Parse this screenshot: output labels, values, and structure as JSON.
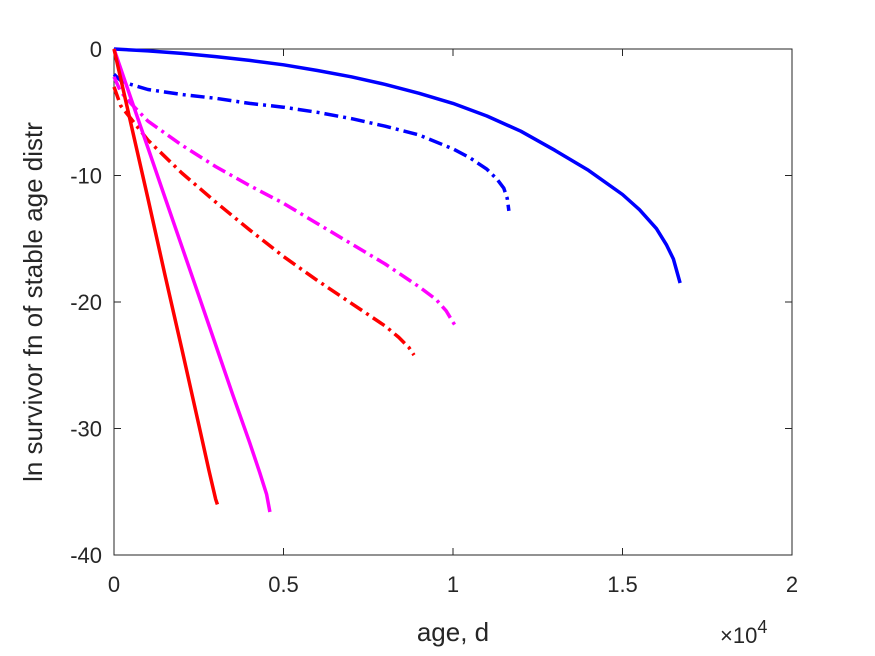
{
  "chart_data": {
    "type": "line",
    "xlabel": "age, d",
    "ylabel": "ln survivor fn of stable age distr",
    "x_exponent_label": "×10",
    "x_exponent_power": "4",
    "xlim": [
      0,
      20000
    ],
    "ylim": [
      -40,
      0
    ],
    "x_ticks": [
      0,
      5000,
      10000,
      15000,
      20000
    ],
    "x_tick_labels": [
      "0",
      "0.5",
      "1",
      "1.5",
      "2"
    ],
    "y_ticks": [
      0,
      -10,
      -20,
      -30,
      -40
    ],
    "y_tick_labels": [
      "0",
      "-10",
      "-20",
      "-30",
      "-40"
    ],
    "grid": false,
    "series": [
      {
        "color": "#0000ff",
        "dash": "solid",
        "x": [
          0,
          1000,
          2000,
          3000,
          4000,
          5000,
          6000,
          7000,
          8000,
          9000,
          10000,
          11000,
          12000,
          13000,
          14000,
          15000,
          15500,
          16000,
          16300,
          16500,
          16700
        ],
        "y": [
          0,
          -0.15,
          -0.35,
          -0.6,
          -0.9,
          -1.25,
          -1.7,
          -2.2,
          -2.8,
          -3.5,
          -4.3,
          -5.3,
          -6.5,
          -8.0,
          -9.6,
          -11.5,
          -12.7,
          -14.2,
          -15.5,
          -16.6,
          -18.5
        ]
      },
      {
        "color": "#0000ff",
        "dash": "dashdot",
        "x": [
          0,
          200,
          500,
          1000,
          2000,
          3000,
          4000,
          5000,
          6000,
          7000,
          8000,
          9000,
          10000,
          10500,
          11000,
          11300,
          11500,
          11600,
          11650
        ],
        "y": [
          -2.0,
          -2.5,
          -2.8,
          -3.2,
          -3.6,
          -3.9,
          -4.3,
          -4.6,
          -5.0,
          -5.5,
          -6.1,
          -6.8,
          -7.9,
          -8.6,
          -9.5,
          -10.3,
          -11.0,
          -11.8,
          -12.8
        ]
      },
      {
        "color": "#ff00ff",
        "dash": "dashdot",
        "x": [
          0,
          200,
          500,
          1000,
          2000,
          3000,
          4000,
          5000,
          6000,
          7000,
          8000,
          9000,
          9500,
          9800,
          10000,
          10050
        ],
        "y": [
          -2.2,
          -3.4,
          -4.3,
          -5.7,
          -7.6,
          -9.3,
          -10.8,
          -12.2,
          -13.8,
          -15.4,
          -17.0,
          -18.8,
          -19.8,
          -20.7,
          -21.6,
          -21.8
        ]
      },
      {
        "color": "#ff0000",
        "dash": "dashdot",
        "x": [
          0,
          200,
          500,
          1000,
          2000,
          3000,
          4000,
          5000,
          6000,
          7000,
          7500,
          8000,
          8400,
          8700,
          8850
        ],
        "y": [
          -3.0,
          -4.5,
          -5.5,
          -7.2,
          -9.8,
          -12.1,
          -14.3,
          -16.4,
          -18.3,
          -20.1,
          -21.0,
          -21.9,
          -22.8,
          -23.6,
          -24.2
        ]
      },
      {
        "color": "#ff00ff",
        "dash": "solid",
        "x": [
          0,
          500,
          1000,
          1500,
          2000,
          2500,
          3000,
          3500,
          4000,
          4300,
          4500,
          4600
        ],
        "y": [
          0,
          -3.9,
          -7.8,
          -11.7,
          -15.6,
          -19.5,
          -23.4,
          -27.3,
          -31.1,
          -33.5,
          -35.2,
          -36.6
        ]
      },
      {
        "color": "#ff0000",
        "dash": "solid",
        "x": [
          0,
          500,
          1000,
          1500,
          2000,
          2500,
          2800,
          3000,
          3050
        ],
        "y": [
          0,
          -5.9,
          -11.8,
          -17.8,
          -23.7,
          -29.7,
          -33.3,
          -35.6,
          -36.0
        ]
      }
    ]
  }
}
